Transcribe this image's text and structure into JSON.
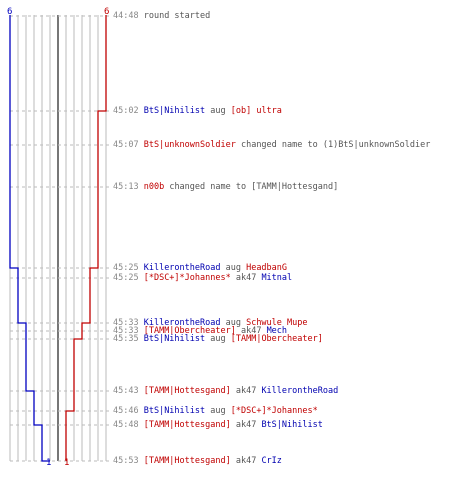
{
  "team_labels": {
    "blue_start": "6",
    "red_start": "6",
    "blue_end": "1",
    "red_end": "1"
  },
  "colors": {
    "blue": "#0000c0",
    "red": "#c00000",
    "grid": "#bbbbbb",
    "dashed": "#bbbbbb",
    "center": "#555555",
    "time": "#888888",
    "text": "#555555"
  },
  "events": [
    {
      "time": "44:48",
      "parts": [
        {
          "t": "round started",
          "c": "txt"
        }
      ]
    },
    {
      "time": "45:02",
      "parts": [
        {
          "t": "BtS|Nihilist",
          "c": "pb"
        },
        {
          "t": " aug ",
          "c": "txt"
        },
        {
          "t": "[ob] ultra",
          "c": "pr"
        }
      ]
    },
    {
      "time": "45:07",
      "parts": [
        {
          "t": "BtS|unknownSoldier",
          "c": "pr"
        },
        {
          "t": " changed name to (1)BtS|unknownSoldier",
          "c": "txt"
        }
      ]
    },
    {
      "time": "45:13",
      "parts": [
        {
          "t": "n00b",
          "c": "pr"
        },
        {
          "t": " changed name to [TAMM|Hottesgand]",
          "c": "txt"
        }
      ]
    },
    {
      "time": "45:25",
      "parts": [
        {
          "t": "KillerontheRoad",
          "c": "pb"
        },
        {
          "t": " aug ",
          "c": "txt"
        },
        {
          "t": "HeadbanG",
          "c": "pr"
        }
      ]
    },
    {
      "time": "45:25",
      "parts": [
        {
          "t": "[*DSC+]*Johannes*",
          "c": "pr"
        },
        {
          "t": " ak47 ",
          "c": "txt"
        },
        {
          "t": "Mitnal",
          "c": "pb"
        }
      ]
    },
    {
      "time": "45:33",
      "parts": [
        {
          "t": "KillerontheRoad",
          "c": "pb"
        },
        {
          "t": " aug ",
          "c": "txt"
        },
        {
          "t": "Schwule Mupe",
          "c": "pr"
        }
      ]
    },
    {
      "time": "45:33",
      "parts": [
        {
          "t": "[TAMM|Obercheater]",
          "c": "pr"
        },
        {
          "t": " ak47 ",
          "c": "txt"
        },
        {
          "t": "Mech",
          "c": "pb"
        }
      ]
    },
    {
      "time": "45:35",
      "parts": [
        {
          "t": "BtS|Nihilist",
          "c": "pb"
        },
        {
          "t": " aug ",
          "c": "txt"
        },
        {
          "t": "[TAMM|Obercheater]",
          "c": "pr"
        }
      ]
    },
    {
      "time": "45:43",
      "parts": [
        {
          "t": "[TAMM|Hottesgand]",
          "c": "pr"
        },
        {
          "t": " ak47 ",
          "c": "txt"
        },
        {
          "t": "KillerontheRoad",
          "c": "pb"
        }
      ]
    },
    {
      "time": "45:46",
      "parts": [
        {
          "t": "BtS|Nihilist",
          "c": "pb"
        },
        {
          "t": " aug ",
          "c": "txt"
        },
        {
          "t": "[*DSC+]*Johannes*",
          "c": "pr"
        }
      ]
    },
    {
      "time": "45:48",
      "parts": [
        {
          "t": "[TAMM|Hottesgand]",
          "c": "pr"
        },
        {
          "t": " ak47 ",
          "c": "txt"
        },
        {
          "t": "BtS|Nihilist",
          "c": "pb"
        }
      ]
    },
    {
      "time": "45:53",
      "parts": [
        {
          "t": "[TAMM|Hottesgand]",
          "c": "pr"
        },
        {
          "t": " ak47 ",
          "c": "txt"
        },
        {
          "t": "CrIz",
          "c": "pb"
        }
      ]
    }
  ]
}
